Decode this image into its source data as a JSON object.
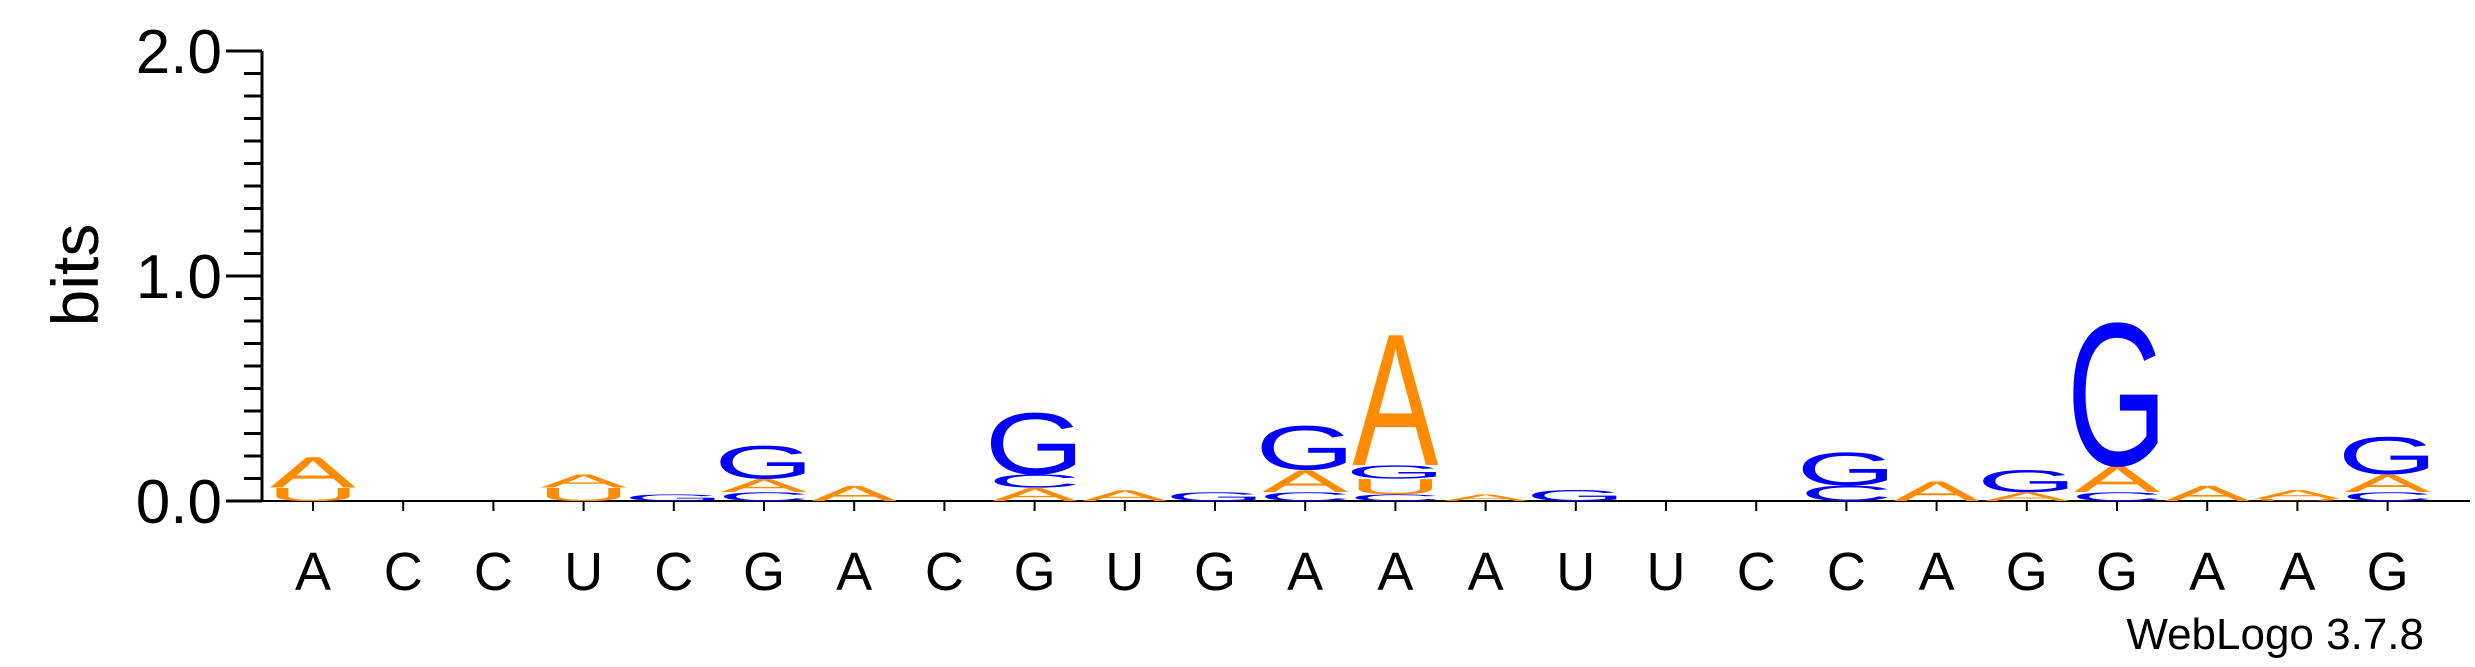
{
  "chart_data": {
    "type": "sequence-logo",
    "ylabel": "bits",
    "ylim": [
      0,
      2.0
    ],
    "yticks": [
      {
        "value": 0.0,
        "label": "0.0"
      },
      {
        "value": 1.0,
        "label": "1.0"
      },
      {
        "value": 2.0,
        "label": "2.0"
      }
    ],
    "positions": [
      "A",
      "C",
      "C",
      "U",
      "C",
      "G",
      "A",
      "C",
      "G",
      "U",
      "G",
      "A",
      "A",
      "A",
      "U",
      "U",
      "C",
      "C",
      "A",
      "G",
      "G",
      "A",
      "A",
      "G"
    ],
    "letter_colors": {
      "A": "#ff8c00",
      "U": "#ff8c00",
      "G": "#0000ff",
      "C": "#0000ff"
    },
    "stacks": [
      [
        {
          "letter": "U",
          "bits": 0.06
        },
        {
          "letter": "A",
          "bits": 0.14
        }
      ],
      [],
      [],
      [
        {
          "letter": "U",
          "bits": 0.06
        },
        {
          "letter": "A",
          "bits": 0.06
        }
      ],
      [
        {
          "letter": "G",
          "bits": 0.03
        }
      ],
      [
        {
          "letter": "C",
          "bits": 0.04
        },
        {
          "letter": "A",
          "bits": 0.06
        },
        {
          "letter": "G",
          "bits": 0.15
        }
      ],
      [
        {
          "letter": "A",
          "bits": 0.07
        }
      ],
      [],
      [
        {
          "letter": "A",
          "bits": 0.06
        },
        {
          "letter": "C",
          "bits": 0.06
        },
        {
          "letter": "G",
          "bits": 0.28
        }
      ],
      [
        {
          "letter": "A",
          "bits": 0.05
        }
      ],
      [
        {
          "letter": "G",
          "bits": 0.04
        }
      ],
      [
        {
          "letter": "C",
          "bits": 0.04
        },
        {
          "letter": "A",
          "bits": 0.1
        },
        {
          "letter": "G",
          "bits": 0.2
        }
      ],
      [
        {
          "letter": "C",
          "bits": 0.03
        },
        {
          "letter": "U",
          "bits": 0.07
        },
        {
          "letter": "G",
          "bits": 0.06
        },
        {
          "letter": "A",
          "bits": 0.6
        }
      ],
      [
        {
          "letter": "A",
          "bits": 0.03
        }
      ],
      [
        {
          "letter": "G",
          "bits": 0.05
        }
      ],
      [],
      [],
      [
        {
          "letter": "C",
          "bits": 0.07
        },
        {
          "letter": "G",
          "bits": 0.15
        }
      ],
      [
        {
          "letter": "A",
          "bits": 0.09
        }
      ],
      [
        {
          "letter": "A",
          "bits": 0.04
        },
        {
          "letter": "G",
          "bits": 0.1
        }
      ],
      [
        {
          "letter": "C",
          "bits": 0.04
        },
        {
          "letter": "A",
          "bits": 0.12
        },
        {
          "letter": "G",
          "bits": 0.65
        }
      ],
      [
        {
          "letter": "A",
          "bits": 0.07
        }
      ],
      [
        {
          "letter": "U",
          "bits": 0.01
        },
        {
          "letter": "A",
          "bits": 0.04
        }
      ],
      [
        {
          "letter": "C",
          "bits": 0.04
        },
        {
          "letter": "A",
          "bits": 0.08
        },
        {
          "letter": "G",
          "bits": 0.17
        }
      ]
    ],
    "credit": "WebLogo 3.7.8"
  }
}
